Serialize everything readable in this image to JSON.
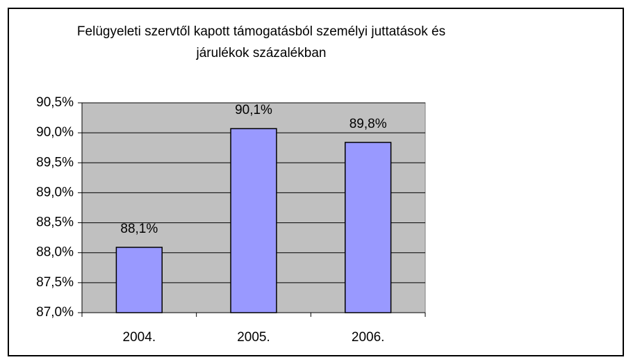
{
  "chart_data": {
    "type": "bar",
    "title": [
      "Felügyeleti szervtől kapott támogatásból személyi juttatások és",
      "járulékok százalékban"
    ],
    "categories": [
      "2004.",
      "2005.",
      "2006."
    ],
    "values": [
      88.09,
      90.07,
      89.84
    ],
    "value_labels": [
      "88,1%",
      "90,1%",
      "89,8%"
    ],
    "color": "#9999ff",
    "ylim": [
      87,
      90.5
    ],
    "yticks": [
      {
        "value": 87,
        "label": "87,0%"
      },
      {
        "value": 87.5,
        "label": "87,5%"
      },
      {
        "value": 88,
        "label": "88,0%"
      },
      {
        "value": 88.5,
        "label": "88,5%"
      },
      {
        "value": 89,
        "label": "89,0%"
      },
      {
        "value": 89.5,
        "label": "89,5%"
      },
      {
        "value": 90,
        "label": "90,0%"
      },
      {
        "value": 90.5,
        "label": "90,5%"
      }
    ],
    "grid": true
  }
}
